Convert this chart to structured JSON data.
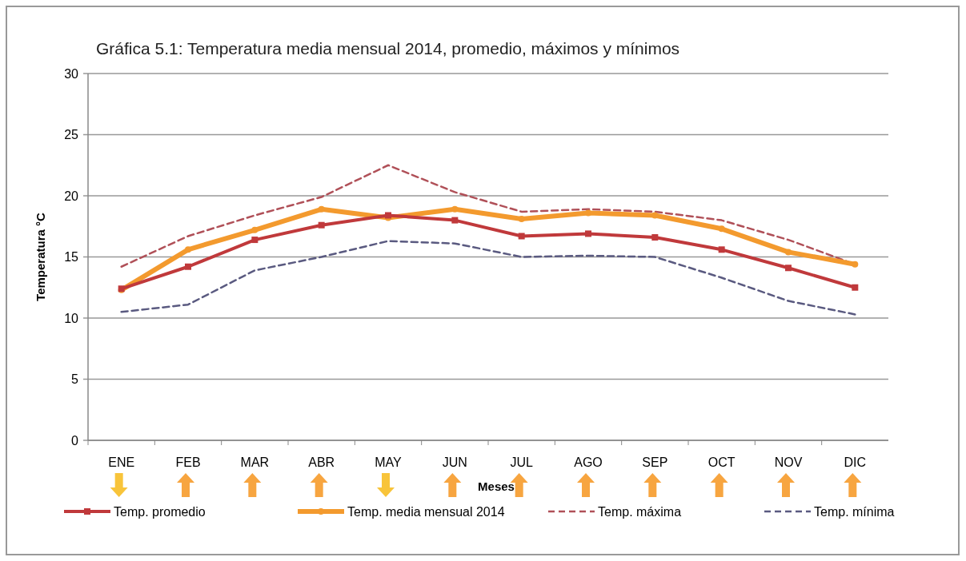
{
  "chart_data": {
    "type": "line",
    "title": "Gráfica 5.1: Temperatura media mensual 2014, promedio, máximos y mínimos",
    "xlabel": "Meses",
    "ylabel": "Temperatura °C",
    "categories": [
      "ENE",
      "FEB",
      "MAR",
      "ABR",
      "MAY",
      "JUN",
      "JUL",
      "AGO",
      "SEP",
      "OCT",
      "NOV",
      "DIC"
    ],
    "ylim": [
      0,
      30
    ],
    "yticks": [
      0,
      5,
      10,
      15,
      20,
      25,
      30
    ],
    "grid": "y",
    "legend": "bottom",
    "series": [
      {
        "name": "Temp. promedio",
        "color": "#c0393b",
        "marker": "square",
        "line_style": "solid",
        "values": [
          12.4,
          14.2,
          16.4,
          17.6,
          18.4,
          18.0,
          16.7,
          16.9,
          16.6,
          15.6,
          14.1,
          12.5
        ]
      },
      {
        "name": "Temp. media mensual 2014",
        "color": "#f39a2e",
        "marker": "circle",
        "line_style": "solid",
        "values": [
          12.3,
          15.6,
          17.2,
          18.9,
          18.2,
          18.9,
          18.1,
          18.6,
          18.4,
          17.3,
          15.4,
          14.4
        ]
      },
      {
        "name": "Temp. máxima",
        "color": "#b05058",
        "marker": "none",
        "line_style": "dashed",
        "values": [
          14.2,
          16.7,
          18.4,
          19.9,
          22.5,
          20.3,
          18.7,
          18.9,
          18.7,
          18.0,
          16.4,
          14.4
        ]
      },
      {
        "name": "Temp. mínima",
        "color": "#5a5a80",
        "marker": "none",
        "line_style": "dashed",
        "values": [
          10.5,
          11.1,
          13.9,
          15.0,
          16.3,
          16.1,
          15.0,
          15.1,
          15.0,
          13.3,
          11.4,
          10.3
        ]
      }
    ]
  }
}
